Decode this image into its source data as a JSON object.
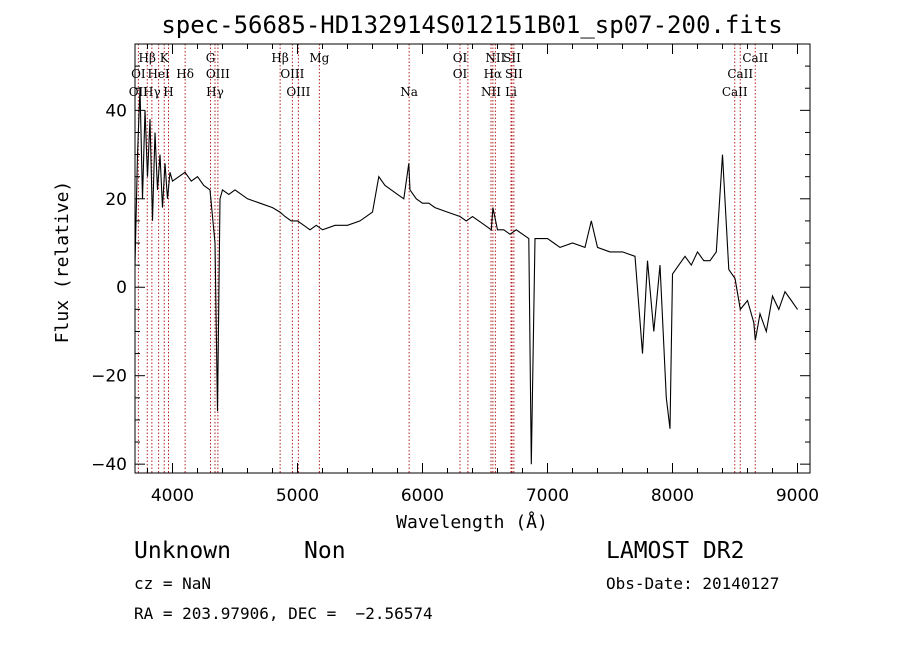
{
  "chart_data": {
    "type": "line",
    "title": "spec-56685-HD132914S012151B01_sp07-200.fits",
    "xlabel": "Wavelength (Å)",
    "ylabel": "Flux (relative)",
    "xlim": [
      3700,
      9100
    ],
    "ylim": [
      -42,
      55
    ],
    "xticks": [
      4000,
      5000,
      6000,
      7000,
      8000,
      9000
    ],
    "yticks": [
      -40,
      -20,
      0,
      20,
      40
    ],
    "ytick_labels": [
      "−40",
      "−20",
      "0",
      "20",
      "40"
    ],
    "grid": false,
    "line_color": "#000000",
    "marker_color": "#b22222",
    "series": [
      {
        "x": [
          3700,
          3720,
          3740,
          3760,
          3780,
          3800,
          3820,
          3840,
          3860,
          3880,
          3900,
          3920,
          3940,
          3960,
          3980,
          4000,
          4050,
          4100,
          4150,
          4200,
          4250,
          4300,
          4340,
          4360,
          4380,
          4400,
          4450,
          4500,
          4600,
          4700,
          4800,
          4860,
          4900,
          4950,
          5000,
          5050,
          5100,
          5150,
          5200,
          5300,
          5400,
          5500,
          5600,
          5650,
          5700,
          5750,
          5800,
          5850,
          5890,
          5900,
          5950,
          6000,
          6050,
          6100,
          6200,
          6300,
          6350,
          6400,
          6450,
          6500,
          6550,
          6563,
          6600,
          6650,
          6700,
          6750,
          6800,
          6850,
          6870,
          6900,
          6950,
          7000,
          7050,
          7100,
          7200,
          7300,
          7350,
          7400,
          7500,
          7600,
          7700,
          7760,
          7800,
          7850,
          7900,
          7950,
          7980,
          8000,
          8050,
          8100,
          8150,
          8200,
          8250,
          8300,
          8350,
          8400,
          8450,
          8500,
          8542,
          8600,
          8650,
          8662,
          8700,
          8750,
          8800,
          8850,
          8900,
          8950,
          9000
        ],
        "values": [
          5,
          30,
          45,
          20,
          40,
          25,
          38,
          15,
          35,
          22,
          30,
          18,
          28,
          20,
          26,
          24,
          25,
          26,
          24,
          25,
          23,
          22,
          10,
          -28,
          20,
          22,
          21,
          22,
          20,
          19,
          18,
          17,
          16,
          15,
          15,
          14,
          13,
          14,
          13,
          14,
          14,
          15,
          17,
          25,
          23,
          22,
          21,
          20,
          28,
          22,
          20,
          19,
          19,
          18,
          17,
          16,
          15,
          16,
          15,
          14,
          13,
          18,
          13,
          13,
          12,
          13,
          12,
          11,
          -40,
          11,
          11,
          11,
          10,
          9,
          10,
          9,
          15,
          9,
          8,
          8,
          7,
          -15,
          6,
          -10,
          5,
          -25,
          -32,
          3,
          5,
          7,
          5,
          8,
          6,
          6,
          8,
          30,
          4,
          2,
          -5,
          -3,
          -8,
          -12,
          -6,
          -10,
          -2,
          -5,
          -1,
          -3,
          -5
        ]
      }
    ],
    "line_labels": [
      {
        "text": "Hβ",
        "x": 3798,
        "row": 1
      },
      {
        "text": "K",
        "x": 3934,
        "row": 1
      },
      {
        "text": "G",
        "x": 4304,
        "row": 1
      },
      {
        "text": "Hβ",
        "x": 4861,
        "row": 1
      },
      {
        "text": "Mg",
        "x": 5175,
        "row": 1
      },
      {
        "text": "OI",
        "x": 6300,
        "row": 1
      },
      {
        "text": "NII",
        "x": 6583,
        "row": 1
      },
      {
        "text": "SII",
        "x": 6716,
        "row": 1
      },
      {
        "text": "CaII",
        "x": 8662,
        "row": 1
      },
      {
        "text": "OI",
        "x": 3727,
        "row": 2
      },
      {
        "text": "HeI",
        "x": 3889,
        "row": 2
      },
      {
        "text": "Hδ",
        "x": 4101,
        "row": 2
      },
      {
        "text": "OIII",
        "x": 4363,
        "row": 2
      },
      {
        "text": "OIII",
        "x": 4959,
        "row": 2
      },
      {
        "text": "OI",
        "x": 6300,
        "row": 2
      },
      {
        "text": "Hα",
        "x": 6563,
        "row": 2
      },
      {
        "text": "SII",
        "x": 6731,
        "row": 2
      },
      {
        "text": "CaII",
        "x": 8542,
        "row": 2
      },
      {
        "text": "OII",
        "x": 3727,
        "row": 3
      },
      {
        "text": "Hγ",
        "x": 3835,
        "row": 3
      },
      {
        "text": "H",
        "x": 3968,
        "row": 3
      },
      {
        "text": "Hγ",
        "x": 4340,
        "row": 3
      },
      {
        "text": "OIII",
        "x": 5007,
        "row": 3
      },
      {
        "text": "Na",
        "x": 5893,
        "row": 3
      },
      {
        "text": "NII",
        "x": 6548,
        "row": 3
      },
      {
        "text": "Li",
        "x": 6708,
        "row": 3
      },
      {
        "text": "CaII",
        "x": 8498,
        "row": 3
      }
    ],
    "marker_lines": [
      3727,
      3798,
      3835,
      3889,
      3934,
      3968,
      4101,
      4304,
      4340,
      4363,
      4861,
      4959,
      5007,
      5175,
      5893,
      6300,
      6363,
      6548,
      6563,
      6583,
      6708,
      6716,
      6731,
      8498,
      8542,
      8662
    ]
  },
  "info": {
    "object_class": "Unknown",
    "object_subclass": "Non",
    "cz": "cz = NaN",
    "radec": "RA = 203.97906, DEC =  −2.56574",
    "survey": "LAMOST DR2",
    "obs_date": "Obs-Date: 20140127"
  }
}
